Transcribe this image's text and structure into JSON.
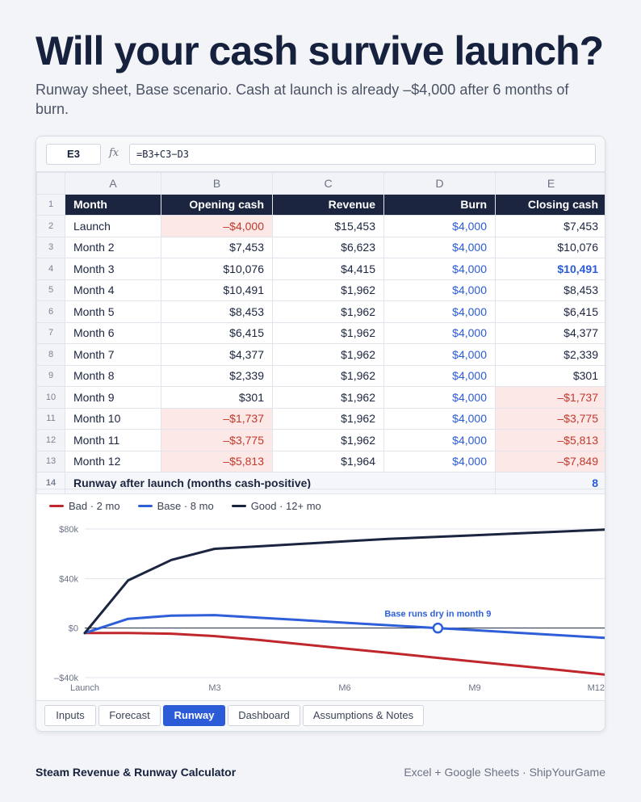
{
  "page": {
    "title": "Will your cash survive launch?",
    "subtitle": "Runway sheet, Base scenario. Cash at launch is already –$4,000 after 6 months of burn."
  },
  "formula_bar": {
    "cell_ref": "E3",
    "fx": "fx",
    "formula": "=B3+C3−D3"
  },
  "sheet": {
    "col_letters": [
      "A",
      "B",
      "C",
      "D",
      "E"
    ],
    "headers": [
      "Month",
      "Opening cash",
      "Revenue",
      "Burn",
      "Closing cash"
    ],
    "rows": [
      {
        "n": "2",
        "month": "Launch",
        "open": "–$4,000",
        "rev": "$15,453",
        "burn": "$4,000",
        "close": "$7,453"
      },
      {
        "n": "3",
        "month": "Month 2",
        "open": "$7,453",
        "rev": "$6,623",
        "burn": "$4,000",
        "close": "$10,076"
      },
      {
        "n": "4",
        "month": "Month 3",
        "open": "$10,076",
        "rev": "$4,415",
        "burn": "$4,000",
        "close": "$10,491"
      },
      {
        "n": "5",
        "month": "Month 4",
        "open": "$10,491",
        "rev": "$1,962",
        "burn": "$4,000",
        "close": "$8,453"
      },
      {
        "n": "6",
        "month": "Month 5",
        "open": "$8,453",
        "rev": "$1,962",
        "burn": "$4,000",
        "close": "$6,415"
      },
      {
        "n": "7",
        "month": "Month 6",
        "open": "$6,415",
        "rev": "$1,962",
        "burn": "$4,000",
        "close": "$4,377"
      },
      {
        "n": "8",
        "month": "Month 7",
        "open": "$4,377",
        "rev": "$1,962",
        "burn": "$4,000",
        "close": "$2,339"
      },
      {
        "n": "9",
        "month": "Month 8",
        "open": "$2,339",
        "rev": "$1,962",
        "burn": "$4,000",
        "close": "$301"
      },
      {
        "n": "10",
        "month": "Month 9",
        "open": "$301",
        "rev": "$1,962",
        "burn": "$4,000",
        "close": "–$1,737"
      },
      {
        "n": "11",
        "month": "Month 10",
        "open": "–$1,737",
        "rev": "$1,962",
        "burn": "$4,000",
        "close": "–$3,775"
      },
      {
        "n": "12",
        "month": "Month 11",
        "open": "–$3,775",
        "rev": "$1,962",
        "burn": "$4,000",
        "close": "–$5,813"
      },
      {
        "n": "13",
        "month": "Month 12",
        "open": "–$5,813",
        "rev": "$1,964",
        "burn": "$4,000",
        "close": "–$7,849"
      }
    ],
    "summary": {
      "n": "14",
      "label": "Runway after launch (months cash-positive)",
      "value": "8"
    }
  },
  "chart_data": {
    "type": "line",
    "x": [
      0,
      1,
      2,
      3,
      4,
      5,
      6,
      7,
      8,
      9,
      10,
      11,
      12
    ],
    "x_tick_labels": [
      {
        "x": 0,
        "label": "Launch"
      },
      {
        "x": 3,
        "label": "M3"
      },
      {
        "x": 6,
        "label": "M6"
      },
      {
        "x": 9,
        "label": "M9"
      },
      {
        "x": 12,
        "label": "M12"
      }
    ],
    "y_ticks": [
      {
        "v": 80000,
        "label": "$80k"
      },
      {
        "v": 40000,
        "label": "$40k"
      },
      {
        "v": 0,
        "label": "$0"
      },
      {
        "v": -40000,
        "label": "–$40k"
      }
    ],
    "ylim": [
      -40000,
      80000
    ],
    "series": [
      {
        "name": "Bad · 2 mo",
        "color": "#c0272d",
        "values": [
          -4000,
          -4000,
          -4500,
          -6500,
          -9500,
          -13000,
          -16500,
          -20000,
          -23500,
          -27000,
          -30500,
          -34000,
          -37500
        ]
      },
      {
        "name": "Base · 8 mo",
        "color": "#2e5fd8",
        "values": [
          -4000,
          7453,
          10076,
          10491,
          8453,
          6415,
          4377,
          2339,
          301,
          -1737,
          -3775,
          -5813,
          -7849
        ]
      },
      {
        "name": "Good · 12+ mo",
        "color": "#1b2540",
        "values": [
          -4000,
          38500,
          55000,
          64000,
          66000,
          68000,
          70000,
          72000,
          73500,
          75000,
          76500,
          78000,
          79500
        ]
      }
    ],
    "annotation": {
      "text": "Base runs dry in month 9",
      "x": 8.15,
      "y": 0
    }
  },
  "tabs": [
    {
      "label": "Inputs",
      "active": false
    },
    {
      "label": "Forecast",
      "active": false
    },
    {
      "label": "Runway",
      "active": true
    },
    {
      "label": "Dashboard",
      "active": false
    },
    {
      "label": "Assumptions & Notes",
      "active": false
    }
  ],
  "footer": {
    "left": "Steam Revenue & Runway Calculator",
    "right": "Excel + Google Sheets · ShipYourGame"
  }
}
